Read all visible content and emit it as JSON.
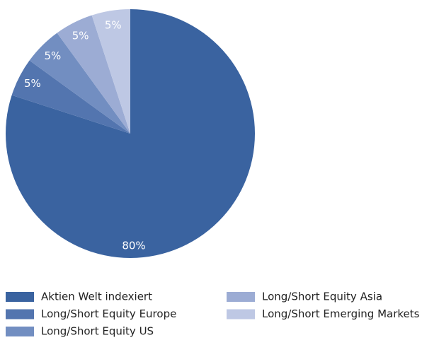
{
  "chart_data": {
    "type": "pie",
    "categories": [
      "Aktien Welt indexiert",
      "Long/Short Equity Europe",
      "Long/Short Equity US",
      "Long/Short Equity Asia",
      "Long/Short Emerging Markets"
    ],
    "values": [
      80,
      5,
      5,
      5,
      5
    ],
    "value_labels": [
      "80%",
      "5%",
      "5%",
      "5%",
      "5%"
    ],
    "colors": [
      "#3a63a0",
      "#5375af",
      "#728ec1",
      "#9cacd4",
      "#bec8e4"
    ]
  }
}
